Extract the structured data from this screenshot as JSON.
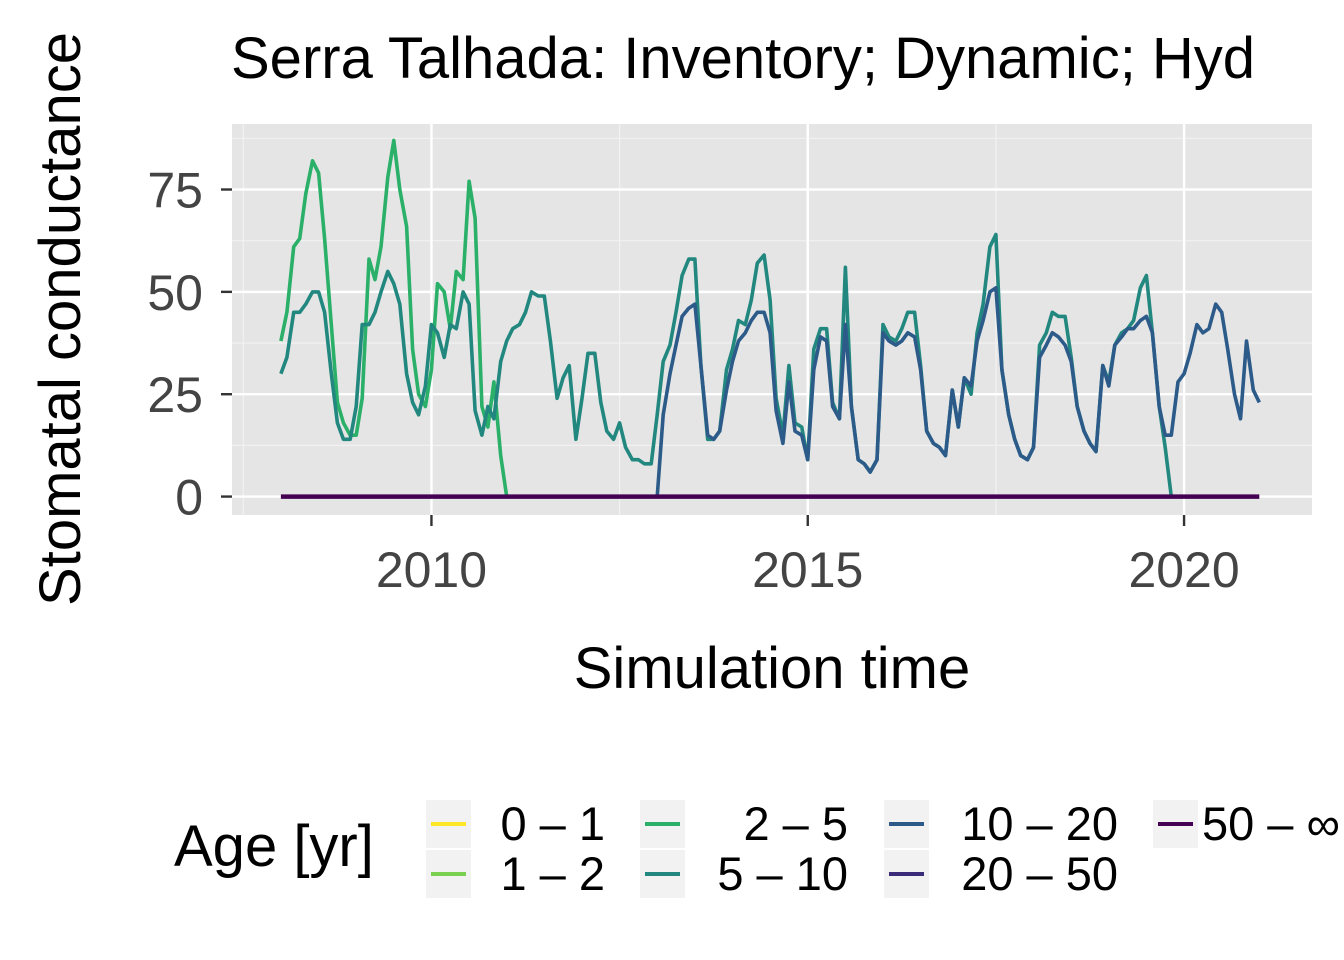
{
  "chart_data": {
    "type": "line",
    "title": "Serra Talhada: Inventory; Dynamic; Hyd",
    "xlabel": "Simulation time",
    "ylabel": "Stomatal conductance",
    "xlim": [
      2007.35,
      2021.7
    ],
    "ylim": [
      -4.5,
      91
    ],
    "x_ticks": [
      2010,
      2015,
      2020
    ],
    "x_tick_labels": [
      "2010",
      "2015",
      "2020"
    ],
    "y_ticks": [
      0,
      25,
      50,
      75
    ],
    "y_tick_labels": [
      "0",
      "25",
      "50",
      "75"
    ],
    "panel_background": "#e5e5e5",
    "grid": true,
    "legend": {
      "title": "Age [yr]",
      "position": "bottom",
      "entries": [
        {
          "label": "0 – 1",
          "color": "#fde725"
        },
        {
          "label": "1 – 2",
          "color": "#7ad151"
        },
        {
          "label": "2 – 5",
          "color": "#2ab068"
        },
        {
          "label": "5 – 10",
          "color": "#22887f"
        },
        {
          "label": "10 – 20",
          "color": "#2c5b8a"
        },
        {
          "label": "20 – 50",
          "color": "#3b2c79"
        },
        {
          "label": "50 – ∞",
          "color": "#440154"
        }
      ]
    },
    "series": [
      {
        "name": "2 – 5",
        "color": "#2ab068",
        "points": [
          [
            2008.0,
            38
          ],
          [
            2008.08,
            45
          ],
          [
            2008.17,
            61
          ],
          [
            2008.25,
            63
          ],
          [
            2008.33,
            74
          ],
          [
            2008.42,
            82
          ],
          [
            2008.5,
            79
          ],
          [
            2008.58,
            63
          ],
          [
            2008.67,
            42
          ],
          [
            2008.75,
            23
          ],
          [
            2008.83,
            18
          ],
          [
            2008.92,
            15
          ],
          [
            2009.0,
            15
          ],
          [
            2009.08,
            24
          ],
          [
            2009.17,
            58
          ],
          [
            2009.25,
            53
          ],
          [
            2009.33,
            61
          ],
          [
            2009.42,
            78
          ],
          [
            2009.5,
            87
          ],
          [
            2009.58,
            75
          ],
          [
            2009.67,
            66
          ],
          [
            2009.75,
            36
          ],
          [
            2009.83,
            25
          ],
          [
            2009.92,
            22
          ],
          [
            2010.0,
            31
          ],
          [
            2010.08,
            52
          ],
          [
            2010.17,
            50
          ],
          [
            2010.25,
            41
          ],
          [
            2010.33,
            55
          ],
          [
            2010.42,
            53
          ],
          [
            2010.5,
            77
          ],
          [
            2010.58,
            68
          ],
          [
            2010.67,
            22
          ],
          [
            2010.75,
            17
          ],
          [
            2010.83,
            28
          ],
          [
            2010.92,
            10
          ],
          [
            2011.0,
            0
          ]
        ]
      },
      {
        "name": "5 – 10",
        "color": "#22887f",
        "points": [
          [
            2008.0,
            30
          ],
          [
            2008.08,
            34
          ],
          [
            2008.17,
            45
          ],
          [
            2008.25,
            45
          ],
          [
            2008.33,
            47
          ],
          [
            2008.42,
            50
          ],
          [
            2008.5,
            50
          ],
          [
            2008.58,
            45
          ],
          [
            2008.67,
            30
          ],
          [
            2008.75,
            18
          ],
          [
            2008.83,
            14
          ],
          [
            2008.92,
            14
          ],
          [
            2009.0,
            22
          ],
          [
            2009.08,
            42
          ],
          [
            2009.17,
            42
          ],
          [
            2009.25,
            45
          ],
          [
            2009.33,
            50
          ],
          [
            2009.42,
            55
          ],
          [
            2009.5,
            52
          ],
          [
            2009.58,
            47
          ],
          [
            2009.67,
            30
          ],
          [
            2009.75,
            23
          ],
          [
            2009.83,
            20
          ],
          [
            2009.92,
            27
          ],
          [
            2010.0,
            42
          ],
          [
            2010.08,
            40
          ],
          [
            2010.17,
            34
          ],
          [
            2010.25,
            42
          ],
          [
            2010.33,
            41
          ],
          [
            2010.42,
            50
          ],
          [
            2010.5,
            47
          ],
          [
            2010.58,
            21
          ],
          [
            2010.67,
            15
          ],
          [
            2010.75,
            22
          ],
          [
            2010.83,
            19
          ],
          [
            2010.92,
            33
          ],
          [
            2011.0,
            38
          ],
          [
            2011.08,
            41
          ],
          [
            2011.17,
            42
          ],
          [
            2011.25,
            45
          ],
          [
            2011.33,
            50
          ],
          [
            2011.42,
            49
          ],
          [
            2011.5,
            49
          ],
          [
            2011.58,
            38
          ],
          [
            2011.67,
            24
          ],
          [
            2011.75,
            29
          ],
          [
            2011.83,
            32
          ],
          [
            2011.92,
            14
          ],
          [
            2012.0,
            24
          ],
          [
            2012.08,
            35
          ],
          [
            2012.17,
            35
          ],
          [
            2012.25,
            23
          ],
          [
            2012.33,
            16
          ],
          [
            2012.42,
            14
          ],
          [
            2012.5,
            18
          ],
          [
            2012.58,
            12
          ],
          [
            2012.67,
            9
          ],
          [
            2012.75,
            9
          ],
          [
            2012.83,
            8
          ],
          [
            2012.92,
            8
          ],
          [
            2013.0,
            20
          ],
          [
            2013.08,
            33
          ],
          [
            2013.17,
            37
          ],
          [
            2013.25,
            45
          ],
          [
            2013.33,
            54
          ],
          [
            2013.42,
            58
          ],
          [
            2013.5,
            58
          ],
          [
            2013.58,
            32
          ],
          [
            2013.67,
            14
          ],
          [
            2013.75,
            14
          ],
          [
            2013.83,
            16
          ],
          [
            2013.92,
            31
          ],
          [
            2014.0,
            36
          ],
          [
            2014.08,
            43
          ],
          [
            2014.17,
            42
          ],
          [
            2014.25,
            48
          ],
          [
            2014.33,
            57
          ],
          [
            2014.42,
            59
          ],
          [
            2014.5,
            48
          ],
          [
            2014.58,
            24
          ],
          [
            2014.67,
            15
          ],
          [
            2014.75,
            32
          ],
          [
            2014.83,
            18
          ],
          [
            2014.92,
            17
          ],
          [
            2015.0,
            9
          ],
          [
            2015.08,
            36
          ],
          [
            2015.17,
            41
          ],
          [
            2015.25,
            41
          ],
          [
            2015.33,
            23
          ],
          [
            2015.42,
            19
          ],
          [
            2015.5,
            56
          ],
          [
            2015.58,
            22
          ],
          [
            2015.67,
            9
          ],
          [
            2015.75,
            8
          ],
          [
            2015.83,
            6
          ],
          [
            2015.92,
            9
          ],
          [
            2016.0,
            42
          ],
          [
            2016.08,
            39
          ],
          [
            2016.17,
            38
          ],
          [
            2016.25,
            41
          ],
          [
            2016.33,
            45
          ],
          [
            2016.42,
            45
          ],
          [
            2016.5,
            32
          ],
          [
            2016.58,
            16
          ],
          [
            2016.67,
            13
          ],
          [
            2016.75,
            12
          ],
          [
            2016.83,
            10
          ],
          [
            2016.92,
            26
          ],
          [
            2017.0,
            17
          ],
          [
            2017.08,
            29
          ],
          [
            2017.17,
            25
          ],
          [
            2017.25,
            40
          ],
          [
            2017.33,
            47
          ],
          [
            2017.42,
            61
          ],
          [
            2017.5,
            64
          ],
          [
            2017.58,
            31
          ],
          [
            2017.67,
            20
          ],
          [
            2017.75,
            14
          ],
          [
            2017.83,
            10
          ],
          [
            2017.92,
            9
          ],
          [
            2018.0,
            12
          ],
          [
            2018.08,
            37
          ],
          [
            2018.17,
            40
          ],
          [
            2018.25,
            45
          ],
          [
            2018.33,
            44
          ],
          [
            2018.42,
            44
          ],
          [
            2018.5,
            34
          ],
          [
            2018.58,
            22
          ],
          [
            2018.67,
            16
          ],
          [
            2018.75,
            13
          ],
          [
            2018.83,
            11
          ],
          [
            2018.92,
            32
          ],
          [
            2019.0,
            28
          ],
          [
            2019.08,
            37
          ],
          [
            2019.17,
            40
          ],
          [
            2019.25,
            41
          ],
          [
            2019.33,
            43
          ],
          [
            2019.42,
            51
          ],
          [
            2019.5,
            54
          ],
          [
            2019.58,
            40
          ],
          [
            2019.67,
            22
          ],
          [
            2019.75,
            12
          ],
          [
            2019.83,
            0
          ]
        ]
      },
      {
        "name": "10 – 20",
        "color": "#2c5b8a",
        "points": [
          [
            2013.0,
            0
          ],
          [
            2013.08,
            20
          ],
          [
            2013.17,
            30
          ],
          [
            2013.25,
            37
          ],
          [
            2013.33,
            44
          ],
          [
            2013.42,
            46
          ],
          [
            2013.5,
            47
          ],
          [
            2013.58,
            32
          ],
          [
            2013.67,
            15
          ],
          [
            2013.75,
            14
          ],
          [
            2013.83,
            16
          ],
          [
            2013.92,
            26
          ],
          [
            2014.0,
            33
          ],
          [
            2014.08,
            38
          ],
          [
            2014.17,
            40
          ],
          [
            2014.25,
            43
          ],
          [
            2014.33,
            45
          ],
          [
            2014.42,
            45
          ],
          [
            2014.5,
            40
          ],
          [
            2014.58,
            21
          ],
          [
            2014.67,
            13
          ],
          [
            2014.75,
            28
          ],
          [
            2014.83,
            16
          ],
          [
            2014.92,
            15
          ],
          [
            2015.0,
            9
          ],
          [
            2015.08,
            31
          ],
          [
            2015.17,
            39
          ],
          [
            2015.25,
            38
          ],
          [
            2015.33,
            22
          ],
          [
            2015.42,
            19
          ],
          [
            2015.5,
            42
          ],
          [
            2015.58,
            22
          ],
          [
            2015.67,
            9
          ],
          [
            2015.75,
            8
          ],
          [
            2015.83,
            6
          ],
          [
            2015.92,
            9
          ],
          [
            2016.0,
            40
          ],
          [
            2016.08,
            38
          ],
          [
            2016.17,
            37
          ],
          [
            2016.25,
            38
          ],
          [
            2016.33,
            40
          ],
          [
            2016.42,
            39
          ],
          [
            2016.5,
            31
          ],
          [
            2016.58,
            16
          ],
          [
            2016.67,
            13
          ],
          [
            2016.75,
            12
          ],
          [
            2016.83,
            10
          ],
          [
            2016.92,
            26
          ],
          [
            2017.0,
            17
          ],
          [
            2017.08,
            29
          ],
          [
            2017.17,
            27
          ],
          [
            2017.25,
            38
          ],
          [
            2017.33,
            43
          ],
          [
            2017.42,
            50
          ],
          [
            2017.5,
            51
          ],
          [
            2017.58,
            31
          ],
          [
            2017.67,
            20
          ],
          [
            2017.75,
            14
          ],
          [
            2017.83,
            10
          ],
          [
            2017.92,
            9
          ],
          [
            2018.0,
            12
          ],
          [
            2018.08,
            34
          ],
          [
            2018.17,
            37
          ],
          [
            2018.25,
            40
          ],
          [
            2018.33,
            39
          ],
          [
            2018.42,
            37
          ],
          [
            2018.5,
            33
          ],
          [
            2018.58,
            22
          ],
          [
            2018.67,
            16
          ],
          [
            2018.75,
            13
          ],
          [
            2018.83,
            11
          ],
          [
            2018.92,
            32
          ],
          [
            2019.0,
            27
          ],
          [
            2019.08,
            37
          ],
          [
            2019.17,
            39
          ],
          [
            2019.25,
            41
          ],
          [
            2019.33,
            41
          ],
          [
            2019.42,
            43
          ],
          [
            2019.5,
            44
          ],
          [
            2019.58,
            40
          ],
          [
            2019.67,
            22
          ],
          [
            2019.75,
            15
          ],
          [
            2019.83,
            15
          ],
          [
            2019.92,
            28
          ],
          [
            2020.0,
            30
          ],
          [
            2020.08,
            35
          ],
          [
            2020.17,
            42
          ],
          [
            2020.25,
            40
          ],
          [
            2020.33,
            41
          ],
          [
            2020.42,
            47
          ],
          [
            2020.5,
            45
          ],
          [
            2020.58,
            36
          ],
          [
            2020.67,
            25
          ],
          [
            2020.75,
            19
          ],
          [
            2020.83,
            38
          ],
          [
            2020.92,
            26
          ],
          [
            2021.0,
            23
          ]
        ]
      },
      {
        "name": "50 – ∞",
        "color": "#440154",
        "points": [
          [
            2008.0,
            0
          ],
          [
            2021.0,
            0
          ]
        ]
      }
    ]
  }
}
